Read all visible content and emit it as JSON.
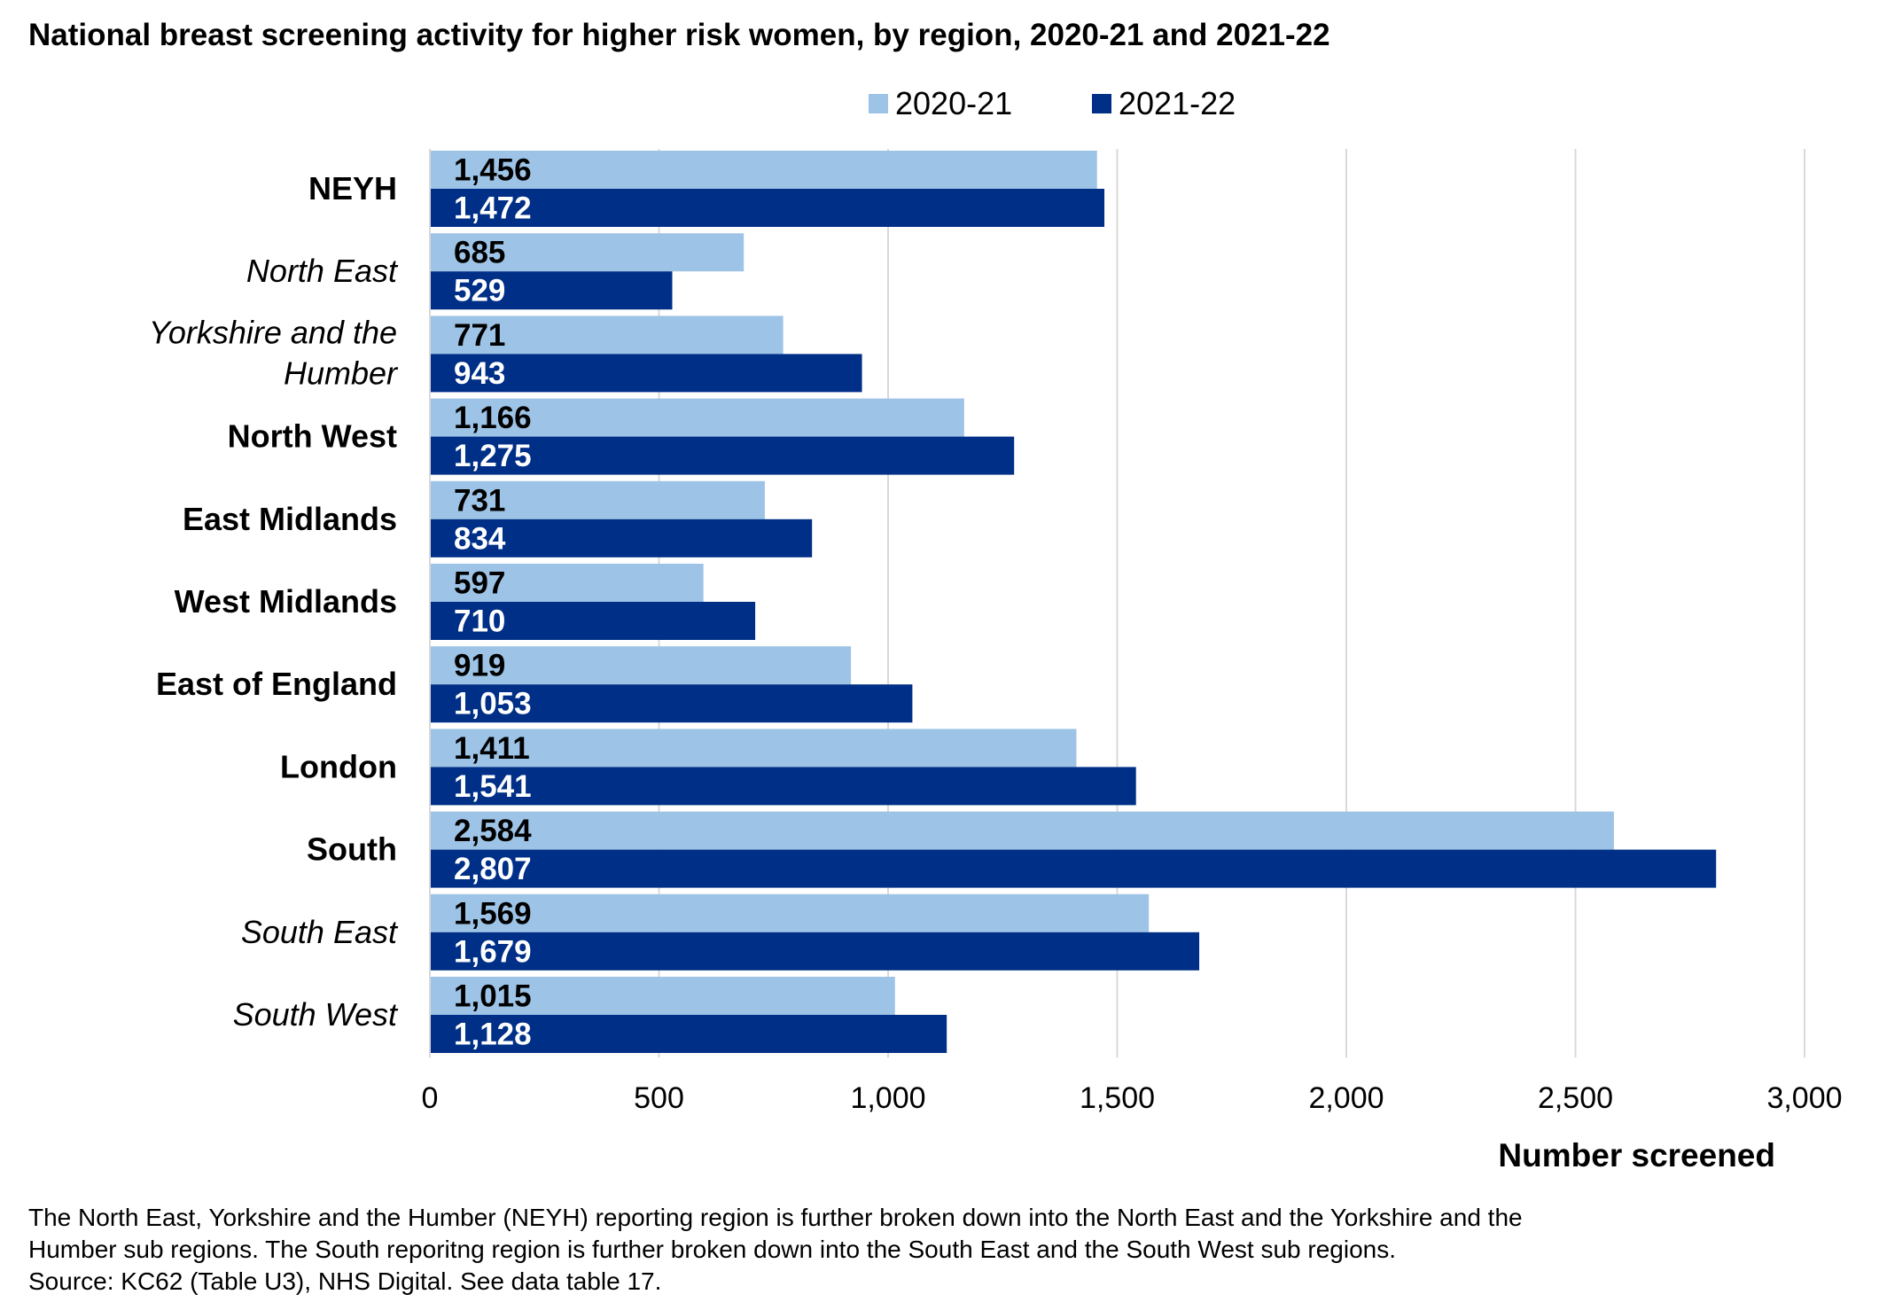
{
  "chart_data": {
    "type": "bar",
    "orientation": "horizontal",
    "title": "National breast screening activity for higher risk women, by region, 2020-21 and 2021-22",
    "xlabel": "Number screened",
    "ylabel": "",
    "xlim": [
      0,
      3000
    ],
    "x_ticks": [
      "0",
      "500",
      "1,000",
      "1,500",
      "2,000",
      "2,500",
      "3,000"
    ],
    "grid": "vertical",
    "legend_position": "top",
    "categories": [
      {
        "label": "NEYH",
        "style": "bold"
      },
      {
        "label": "North East",
        "style": "italic"
      },
      {
        "label": "Yorkshire and the Humber",
        "lines": [
          "Yorkshire and the",
          "Humber"
        ],
        "style": "italic"
      },
      {
        "label": "North West",
        "style": "bold"
      },
      {
        "label": "East Midlands",
        "style": "bold"
      },
      {
        "label": "West Midlands",
        "style": "bold"
      },
      {
        "label": "East of England",
        "style": "bold"
      },
      {
        "label": "London",
        "style": "bold"
      },
      {
        "label": "South",
        "style": "bold"
      },
      {
        "label": "South East",
        "style": "italic"
      },
      {
        "label": "South West",
        "style": "italic"
      }
    ],
    "series": [
      {
        "name": "2020-21",
        "color": "#9DC3E6",
        "label_color": "#000000",
        "values": [
          1456,
          685,
          771,
          1166,
          731,
          597,
          919,
          1411,
          2584,
          1569,
          1015
        ],
        "labels": [
          "1,456",
          "685",
          "771",
          "1,166",
          "731",
          "597",
          "919",
          "1,411",
          "2,584",
          "1,569",
          "1,015"
        ]
      },
      {
        "name": "2021-22",
        "color": "#002F87",
        "label_color": "#FFFFFF",
        "values": [
          1472,
          529,
          943,
          1275,
          834,
          710,
          1053,
          1541,
          2807,
          1679,
          1128
        ],
        "labels": [
          "1,472",
          "529",
          "943",
          "1,275",
          "834",
          "710",
          "1,053",
          "1,541",
          "2,807",
          "1,679",
          "1,128"
        ]
      }
    ]
  },
  "footnote": [
    "The North East, Yorkshire and the Humber (NEYH) reporting region is further broken down into the North East and the Yorkshire and the",
    "Humber sub regions. The South reporitng region is further broken down into the South East and the South West sub regions.",
    "Source: KC62 (Table U3), NHS Digital. See data table 17."
  ]
}
